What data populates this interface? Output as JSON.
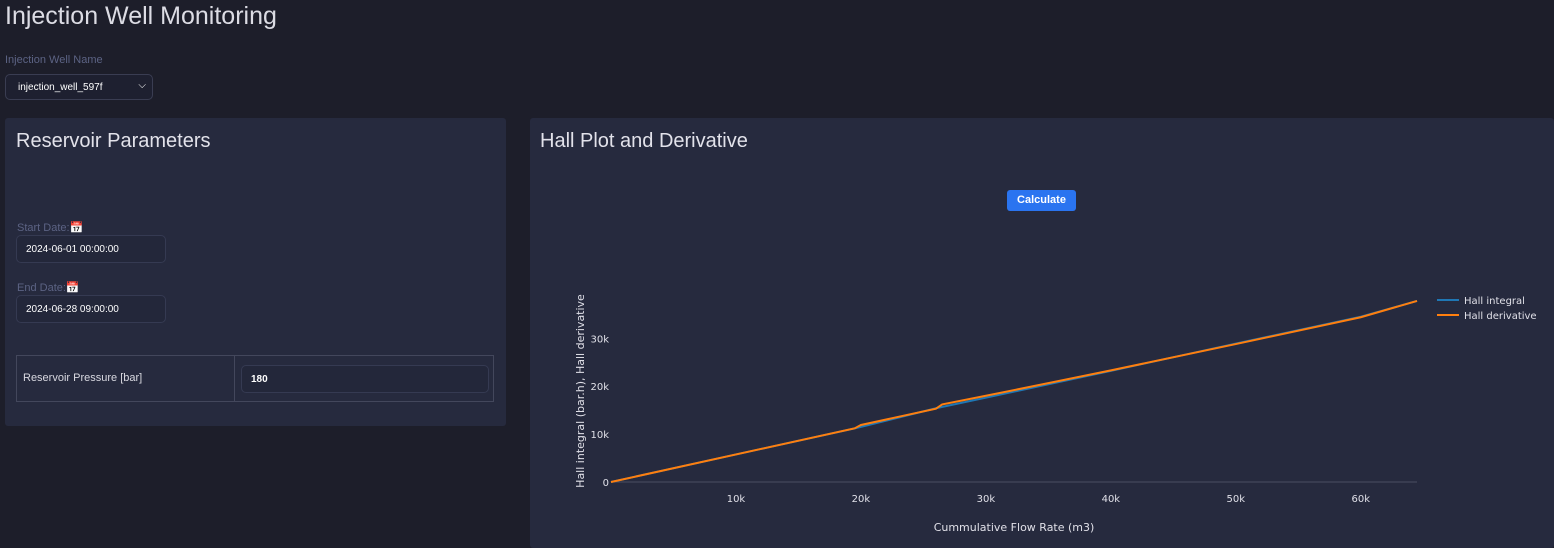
{
  "title": "Injection Well Monitoring",
  "well": {
    "label": "Injection Well Name",
    "value": "injection_well_597f"
  },
  "reservoir": {
    "title": "Reservoir Parameters",
    "start_label": "Start Date:",
    "start_value": "2024-06-01 00:00:00",
    "end_label": "End Date:",
    "end_value": "2024-06-28 09:00:00",
    "pressure_label": "Reservoir Pressure [bar]",
    "pressure_value": "180"
  },
  "plot": {
    "title": "Hall Plot and Derivative",
    "calculate_label": "Calculate"
  },
  "chart_data": {
    "type": "line",
    "xlabel": "Cummulative Flow Rate (m3)",
    "ylabel": "Hall integral (bar.h), Hall derivative",
    "xlim": [
      0,
      64500
    ],
    "ylim": [
      0,
      38000
    ],
    "xticks": [
      10000,
      20000,
      30000,
      40000,
      50000,
      60000
    ],
    "xtick_labels": [
      "10k",
      "20k",
      "30k",
      "40k",
      "50k",
      "60k"
    ],
    "yticks": [
      0,
      10000,
      20000,
      30000
    ],
    "ytick_labels": [
      "0",
      "10k",
      "20k",
      "30k"
    ],
    "legend_position": "right",
    "series": [
      {
        "name": "Hall integral",
        "color": "#1f77b4",
        "x": [
          0,
          12000,
          19500,
          20000,
          26000,
          30000,
          40000,
          50000,
          60000,
          64500
        ],
        "y": [
          0,
          6900,
          11200,
          11500,
          15400,
          17600,
          23200,
          28900,
          34500,
          37800
        ]
      },
      {
        "name": "Hall derivative",
        "color": "#ff7f0e",
        "x": [
          0,
          12000,
          19500,
          20000,
          26000,
          26500,
          30000,
          40000,
          50000,
          60000,
          64500
        ],
        "y": [
          0,
          6900,
          11200,
          11900,
          15300,
          16200,
          18000,
          23300,
          28800,
          34400,
          37800
        ]
      }
    ]
  }
}
